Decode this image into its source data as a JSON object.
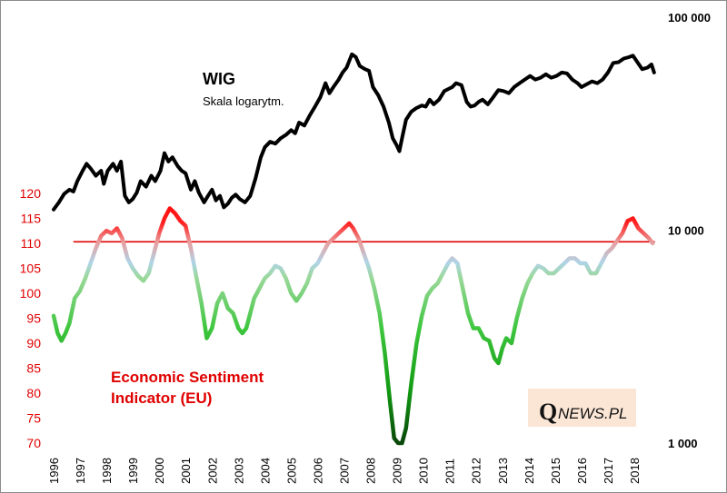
{
  "chart_data": {
    "type": "line",
    "title": "",
    "x_ticks": [
      "1996",
      "1997",
      "1998",
      "1999",
      "2000",
      "2001",
      "2002",
      "2003",
      "2004",
      "2005",
      "2006",
      "2007",
      "2008",
      "2009",
      "2010",
      "2011",
      "2012",
      "2013",
      "2014",
      "2015",
      "2016",
      "2017",
      "2018"
    ],
    "y_left": {
      "ticks": [
        "70",
        "75",
        "80",
        "85",
        "90",
        "95",
        "100",
        "105",
        "110",
        "115",
        "120"
      ],
      "range": [
        70,
        120
      ],
      "color": "#e00000"
    },
    "y_right": {
      "ticks": [
        "1 000",
        "10 000",
        "100 000"
      ],
      "range": [
        1000,
        100000
      ],
      "scale": "log"
    },
    "reference_line": {
      "value": 110.3,
      "axis": "left",
      "color": "#e00000"
    },
    "grid": false,
    "series": [
      {
        "name": "WIG",
        "subtitle": "Skala logarytm.",
        "axis": "right",
        "color": "#000000",
        "points": [
          [
            1996.0,
            12500
          ],
          [
            1996.2,
            13500
          ],
          [
            1996.4,
            14800
          ],
          [
            1996.6,
            15500
          ],
          [
            1996.75,
            15200
          ],
          [
            1996.9,
            17000
          ],
          [
            1997.1,
            19000
          ],
          [
            1997.25,
            20500
          ],
          [
            1997.4,
            19500
          ],
          [
            1997.6,
            18000
          ],
          [
            1997.8,
            19000
          ],
          [
            1997.9,
            16500
          ],
          [
            1998.05,
            19000
          ],
          [
            1998.25,
            20500
          ],
          [
            1998.4,
            19000
          ],
          [
            1998.55,
            21000
          ],
          [
            1998.7,
            14500
          ],
          [
            1998.85,
            13500
          ],
          [
            1999.0,
            14000
          ],
          [
            1999.15,
            15000
          ],
          [
            1999.3,
            17000
          ],
          [
            1999.5,
            16000
          ],
          [
            1999.7,
            18000
          ],
          [
            1999.85,
            17000
          ],
          [
            2000.05,
            19000
          ],
          [
            2000.2,
            23000
          ],
          [
            2000.35,
            21000
          ],
          [
            2000.5,
            22000
          ],
          [
            2000.7,
            20000
          ],
          [
            2000.85,
            19000
          ],
          [
            2001.0,
            18500
          ],
          [
            2001.2,
            15500
          ],
          [
            2001.35,
            17000
          ],
          [
            2001.5,
            15000
          ],
          [
            2001.7,
            13500
          ],
          [
            2001.85,
            14500
          ],
          [
            2002.0,
            15500
          ],
          [
            2002.15,
            13800
          ],
          [
            2002.3,
            14500
          ],
          [
            2002.45,
            12800
          ],
          [
            2002.6,
            13300
          ],
          [
            2002.75,
            14200
          ],
          [
            2002.9,
            14700
          ],
          [
            2003.05,
            14000
          ],
          [
            2003.25,
            13500
          ],
          [
            2003.45,
            14500
          ],
          [
            2003.65,
            17500
          ],
          [
            2003.85,
            22000
          ],
          [
            2004.0,
            24500
          ],
          [
            2004.2,
            26000
          ],
          [
            2004.4,
            25500
          ],
          [
            2004.6,
            27000
          ],
          [
            2004.8,
            28000
          ],
          [
            2005.0,
            29500
          ],
          [
            2005.15,
            28500
          ],
          [
            2005.3,
            32000
          ],
          [
            2005.5,
            31000
          ],
          [
            2005.7,
            34500
          ],
          [
            2005.9,
            38000
          ],
          [
            2006.1,
            42000
          ],
          [
            2006.3,
            49000
          ],
          [
            2006.45,
            44000
          ],
          [
            2006.6,
            47000
          ],
          [
            2006.8,
            51000
          ],
          [
            2006.95,
            55000
          ],
          [
            2007.1,
            58000
          ],
          [
            2007.3,
            67000
          ],
          [
            2007.45,
            65000
          ],
          [
            2007.6,
            59000
          ],
          [
            2007.8,
            57000
          ],
          [
            2007.95,
            56000
          ],
          [
            2008.1,
            47000
          ],
          [
            2008.3,
            43000
          ],
          [
            2008.5,
            38000
          ],
          [
            2008.7,
            32000
          ],
          [
            2008.85,
            27000
          ],
          [
            2009.0,
            25000
          ],
          [
            2009.1,
            23500
          ],
          [
            2009.2,
            27000
          ],
          [
            2009.35,
            33000
          ],
          [
            2009.55,
            36000
          ],
          [
            2009.75,
            37500
          ],
          [
            2009.95,
            38500
          ],
          [
            2010.1,
            38000
          ],
          [
            2010.25,
            41000
          ],
          [
            2010.4,
            39000
          ],
          [
            2010.6,
            41000
          ],
          [
            2010.8,
            45000
          ],
          [
            2010.95,
            46000
          ],
          [
            2011.1,
            47000
          ],
          [
            2011.25,
            49000
          ],
          [
            2011.45,
            48000
          ],
          [
            2011.65,
            40000
          ],
          [
            2011.8,
            38000
          ],
          [
            2011.95,
            38500
          ],
          [
            2012.1,
            40000
          ],
          [
            2012.25,
            41000
          ],
          [
            2012.45,
            39000
          ],
          [
            2012.65,
            42000
          ],
          [
            2012.85,
            45500
          ],
          [
            2013.05,
            45000
          ],
          [
            2013.25,
            44000
          ],
          [
            2013.45,
            47000
          ],
          [
            2013.65,
            49000
          ],
          [
            2013.85,
            51000
          ],
          [
            2014.05,
            53000
          ],
          [
            2014.25,
            51000
          ],
          [
            2014.45,
            52000
          ],
          [
            2014.65,
            54000
          ],
          [
            2014.85,
            52000
          ],
          [
            2015.05,
            53000
          ],
          [
            2015.25,
            55000
          ],
          [
            2015.45,
            54500
          ],
          [
            2015.65,
            51000
          ],
          [
            2015.85,
            49000
          ],
          [
            2016.0,
            47000
          ],
          [
            2016.2,
            48500
          ],
          [
            2016.4,
            50000
          ],
          [
            2016.6,
            49000
          ],
          [
            2016.8,
            51000
          ],
          [
            2017.0,
            55000
          ],
          [
            2017.2,
            61000
          ],
          [
            2017.4,
            61500
          ],
          [
            2017.6,
            64000
          ],
          [
            2017.8,
            65000
          ],
          [
            2017.95,
            66000
          ],
          [
            2018.1,
            62000
          ],
          [
            2018.3,
            57000
          ],
          [
            2018.5,
            58000
          ],
          [
            2018.65,
            60000
          ],
          [
            2018.75,
            55000
          ]
        ]
      },
      {
        "name": "Economic Sentiment Indicator (EU)",
        "axis": "left",
        "color_low": "#10a010",
        "color_mid": "#b0d8e8",
        "color_high": "#ff0000",
        "points": [
          [
            1996.0,
            95.5
          ],
          [
            1996.15,
            92
          ],
          [
            1996.3,
            90.5
          ],
          [
            1996.45,
            92
          ],
          [
            1996.6,
            94
          ],
          [
            1996.8,
            99
          ],
          [
            1997.0,
            100.5
          ],
          [
            1997.2,
            103
          ],
          [
            1997.4,
            106
          ],
          [
            1997.6,
            109
          ],
          [
            1997.8,
            111.5
          ],
          [
            1998.0,
            112.5
          ],
          [
            1998.2,
            112
          ],
          [
            1998.4,
            113
          ],
          [
            1998.6,
            111
          ],
          [
            1998.8,
            107
          ],
          [
            1999.0,
            105
          ],
          [
            1999.2,
            103.5
          ],
          [
            1999.4,
            102.5
          ],
          [
            1999.6,
            104
          ],
          [
            1999.8,
            108
          ],
          [
            2000.0,
            112
          ],
          [
            2000.2,
            115
          ],
          [
            2000.4,
            117
          ],
          [
            2000.6,
            116
          ],
          [
            2000.8,
            114.5
          ],
          [
            2001.0,
            113.5
          ],
          [
            2001.2,
            109
          ],
          [
            2001.4,
            103.5
          ],
          [
            2001.6,
            98
          ],
          [
            2001.8,
            91
          ],
          [
            2002.0,
            93
          ],
          [
            2002.2,
            98
          ],
          [
            2002.4,
            100
          ],
          [
            2002.6,
            97
          ],
          [
            2002.8,
            96
          ],
          [
            2003.0,
            93
          ],
          [
            2003.15,
            92
          ],
          [
            2003.3,
            93
          ],
          [
            2003.45,
            96
          ],
          [
            2003.6,
            99
          ],
          [
            2003.8,
            101
          ],
          [
            2004.0,
            103
          ],
          [
            2004.2,
            104
          ],
          [
            2004.4,
            105.5
          ],
          [
            2004.6,
            105
          ],
          [
            2004.8,
            103
          ],
          [
            2005.0,
            100
          ],
          [
            2005.2,
            98.5
          ],
          [
            2005.4,
            100
          ],
          [
            2005.6,
            102
          ],
          [
            2005.8,
            105
          ],
          [
            2006.0,
            106
          ],
          [
            2006.2,
            108
          ],
          [
            2006.4,
            110
          ],
          [
            2006.6,
            111
          ],
          [
            2006.8,
            112
          ],
          [
            2007.0,
            113
          ],
          [
            2007.2,
            114
          ],
          [
            2007.35,
            113
          ],
          [
            2007.55,
            111
          ],
          [
            2007.75,
            108
          ],
          [
            2007.95,
            105
          ],
          [
            2008.15,
            101
          ],
          [
            2008.35,
            96
          ],
          [
            2008.55,
            88
          ],
          [
            2008.75,
            78
          ],
          [
            2008.9,
            71
          ],
          [
            2009.05,
            69
          ],
          [
            2009.2,
            70
          ],
          [
            2009.35,
            73
          ],
          [
            2009.55,
            82
          ],
          [
            2009.75,
            90
          ],
          [
            2009.95,
            95.5
          ],
          [
            2010.15,
            99.5
          ],
          [
            2010.35,
            101
          ],
          [
            2010.55,
            102
          ],
          [
            2010.75,
            104
          ],
          [
            2010.95,
            106
          ],
          [
            2011.1,
            107
          ],
          [
            2011.3,
            106
          ],
          [
            2011.5,
            101
          ],
          [
            2011.7,
            96
          ],
          [
            2011.9,
            93
          ],
          [
            2012.1,
            93
          ],
          [
            2012.3,
            91
          ],
          [
            2012.5,
            90.5
          ],
          [
            2012.7,
            87
          ],
          [
            2012.85,
            86
          ],
          [
            2013.0,
            89
          ],
          [
            2013.15,
            91
          ],
          [
            2013.35,
            90
          ],
          [
            2013.55,
            95
          ],
          [
            2013.75,
            99
          ],
          [
            2013.95,
            102
          ],
          [
            2014.15,
            104
          ],
          [
            2014.35,
            105.5
          ],
          [
            2014.55,
            105
          ],
          [
            2014.75,
            104
          ],
          [
            2014.95,
            104
          ],
          [
            2015.15,
            105
          ],
          [
            2015.35,
            106
          ],
          [
            2015.55,
            107
          ],
          [
            2015.75,
            107
          ],
          [
            2015.95,
            106
          ],
          [
            2016.15,
            106
          ],
          [
            2016.35,
            104
          ],
          [
            2016.55,
            104
          ],
          [
            2016.75,
            106
          ],
          [
            2016.95,
            108
          ],
          [
            2017.15,
            109
          ],
          [
            2017.35,
            110.5
          ],
          [
            2017.55,
            112
          ],
          [
            2017.75,
            114.5
          ],
          [
            2017.95,
            115
          ],
          [
            2018.15,
            113
          ],
          [
            2018.35,
            112
          ],
          [
            2018.55,
            111
          ],
          [
            2018.7,
            110
          ]
        ]
      }
    ],
    "annotations": {
      "wig_label": "WIG",
      "wig_sublabel": "Skala logarytm.",
      "esi_label_line1": "Economic Sentiment",
      "esi_label_line2": "Indicator (EU)"
    },
    "logo": {
      "q": "Q",
      "rest": "NEWS.PL"
    }
  }
}
